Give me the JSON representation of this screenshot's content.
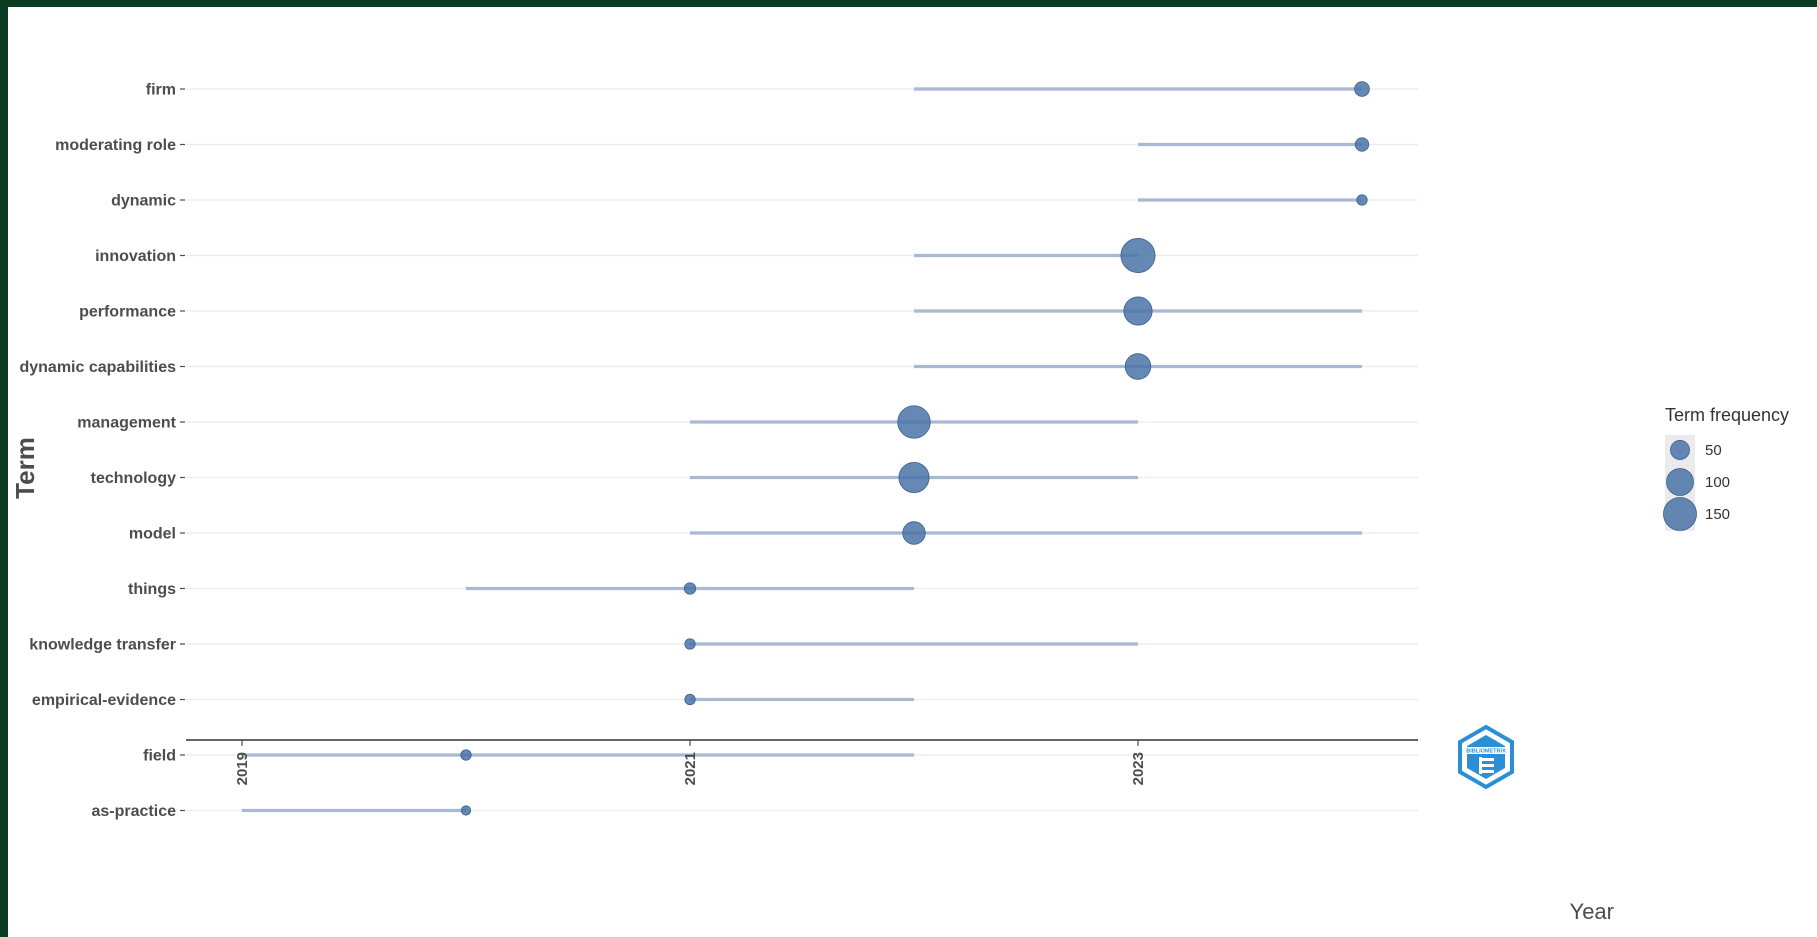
{
  "chart_data": {
    "type": "scatter",
    "subtype": "trend-topics-range",
    "xlabel": "Year",
    "ylabel": "Term",
    "xlim": [
      2018.75,
      2024.25
    ],
    "x_ticks": [
      2019,
      2021,
      2023
    ],
    "grid": "horizontal",
    "legend": {
      "title": "Term frequency",
      "placement": "right",
      "entries": [
        {
          "label": "50",
          "value": 50
        },
        {
          "label": "100",
          "value": 100
        },
        {
          "label": "150",
          "value": 150
        }
      ]
    },
    "colors": {
      "point": "#4a73a8",
      "range": "#a9b8d3",
      "grid": "#ebebeb",
      "axis": "#333333"
    },
    "terms": [
      {
        "term": "firm",
        "year_q1": 2022,
        "year_median": 2024,
        "year_q3": 2024,
        "freq": 30
      },
      {
        "term": "moderating role",
        "year_q1": 2023,
        "year_median": 2024,
        "year_q3": 2024,
        "freq": 25
      },
      {
        "term": "dynamic",
        "year_q1": 2023,
        "year_median": 2024,
        "year_q3": 2024,
        "freq": 15
      },
      {
        "term": "innovation",
        "year_q1": 2022,
        "year_median": 2023,
        "year_q3": 2023,
        "freq": 160
      },
      {
        "term": "performance",
        "year_q1": 2022,
        "year_median": 2023,
        "year_q3": 2024,
        "freq": 110
      },
      {
        "term": "dynamic capabilities",
        "year_q1": 2022,
        "year_median": 2023,
        "year_q3": 2024,
        "freq": 90
      },
      {
        "term": "management",
        "year_q1": 2021,
        "year_median": 2022,
        "year_q3": 2023,
        "freq": 145
      },
      {
        "term": "technology",
        "year_q1": 2021,
        "year_median": 2022,
        "year_q3": 2023,
        "freq": 125
      },
      {
        "term": "model",
        "year_q1": 2021,
        "year_median": 2022,
        "year_q3": 2024,
        "freq": 70
      },
      {
        "term": "things",
        "year_q1": 2020,
        "year_median": 2021,
        "year_q3": 2022,
        "freq": 18
      },
      {
        "term": "knowledge transfer",
        "year_q1": 2021,
        "year_median": 2021,
        "year_q3": 2023,
        "freq": 15
      },
      {
        "term": "empirical-evidence",
        "year_q1": 2021,
        "year_median": 2021,
        "year_q3": 2022,
        "freq": 15
      },
      {
        "term": "field",
        "year_q1": 2019,
        "year_median": 2020,
        "year_q3": 2022,
        "freq": 15
      },
      {
        "term": "as-practice",
        "year_q1": 2019,
        "year_median": 2020,
        "year_q3": 2020,
        "freq": 12
      }
    ]
  },
  "logo": {
    "text": "BIBLIOMETRIX"
  }
}
